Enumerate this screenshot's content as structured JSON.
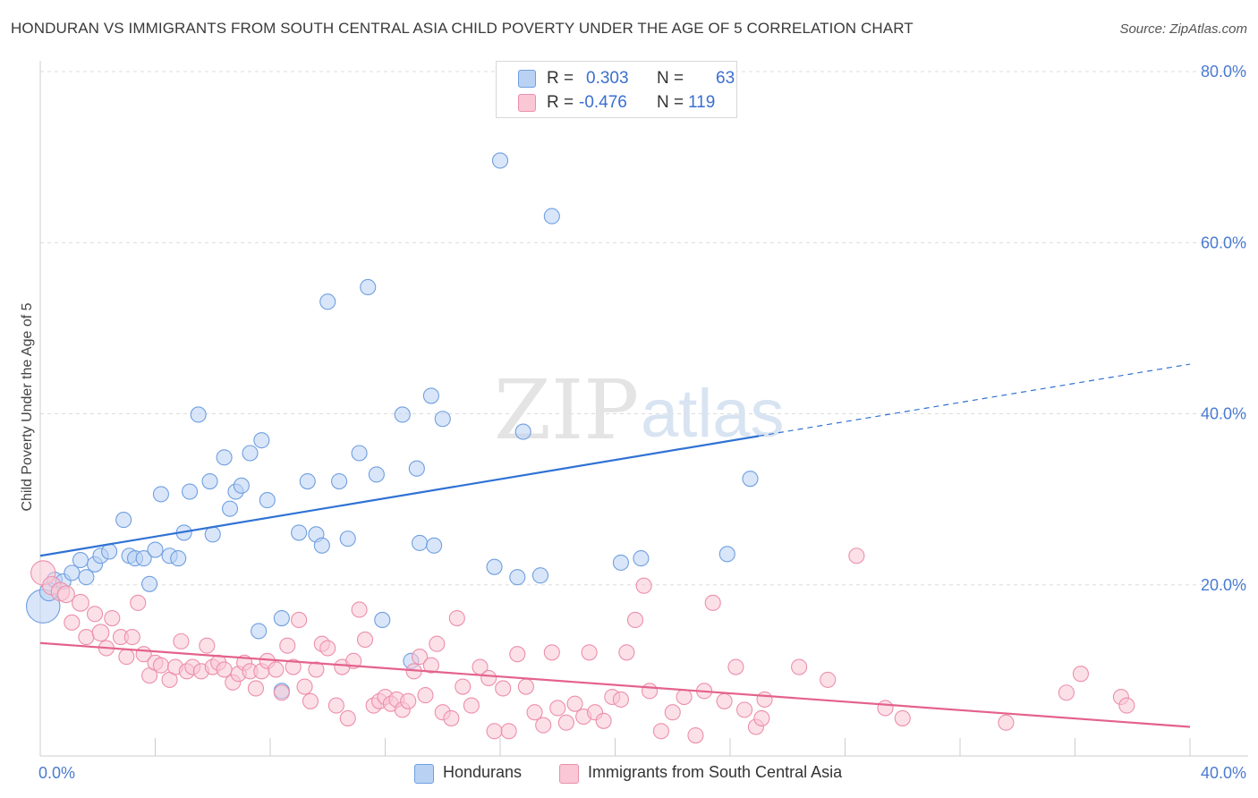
{
  "title": "HONDURAN VS IMMIGRANTS FROM SOUTH CENTRAL ASIA CHILD POVERTY UNDER THE AGE OF 5 CORRELATION CHART",
  "source": "Source: ZipAtlas.com",
  "watermark": {
    "zip": "ZIP",
    "atlas": "atlas"
  },
  "legend_box": [
    {
      "r_label": "R =",
      "r_value": "0.303",
      "n_label": "N =",
      "n_value": "63",
      "color": "#aecbf2"
    },
    {
      "r_label": "R =",
      "r_value": "-0.476",
      "n_label": "N =",
      "n_value": "119",
      "color": "#f7bfd0"
    }
  ],
  "bottom_legend": [
    {
      "label": "Hondurans",
      "color": "#aecbf2"
    },
    {
      "label": "Immigrants from South Central Asia",
      "color": "#f7bfd0"
    }
  ],
  "chart_data": {
    "type": "scatter",
    "title": "HONDURAN VS IMMIGRANTS FROM SOUTH CENTRAL ASIA CHILD POVERTY UNDER THE AGE OF 5 CORRELATION CHART",
    "xlabel": "",
    "ylabel": "Child Poverty Under the Age of 5",
    "xlim": [
      0,
      40
    ],
    "ylim": [
      0,
      80
    ],
    "x_tick_labels": [
      {
        "value": 0,
        "label": "0.0%"
      },
      {
        "value": 40,
        "label": "40.0%"
      }
    ],
    "y_tick_labels": [
      {
        "value": 20,
        "label": "20.0%"
      },
      {
        "value": 40,
        "label": "40.0%"
      },
      {
        "value": 60,
        "label": "60.0%"
      },
      {
        "value": 80,
        "label": "80.0%"
      }
    ],
    "grid": true,
    "legend_position": "top-center",
    "series": [
      {
        "name": "Hondurans",
        "color": "#6f9fe0",
        "fill": "#b9d2f4",
        "trend": {
          "x0": 0,
          "y0": 23.4,
          "x1": 25,
          "y1": 37.4,
          "dashed_to_x": 40,
          "dashed_to_y": 45.8,
          "color": "#2f72d4"
        },
        "points": [
          [
            0.1,
            17.5,
            2.2
          ],
          [
            0.3,
            19.2,
            1.2
          ],
          [
            0.5,
            20.6,
            1.0
          ],
          [
            0.8,
            20.4,
            1.0
          ],
          [
            1.1,
            21.4,
            1.0
          ],
          [
            1.4,
            22.9,
            1.0
          ],
          [
            1.6,
            20.9,
            1.0
          ],
          [
            1.9,
            22.4,
            1.0
          ],
          [
            2.1,
            23.4,
            1.0
          ],
          [
            2.4,
            23.9,
            1.0
          ],
          [
            2.9,
            27.6,
            1.0
          ],
          [
            3.1,
            23.4,
            1.0
          ],
          [
            3.3,
            23.1,
            1.0
          ],
          [
            3.6,
            23.1,
            1.0
          ],
          [
            3.8,
            20.1,
            1.0
          ],
          [
            4.0,
            24.1,
            1.0
          ],
          [
            4.2,
            30.6,
            1.0
          ],
          [
            4.5,
            23.4,
            1.0
          ],
          [
            4.8,
            23.1,
            1.0
          ],
          [
            5.0,
            26.1,
            1.0
          ],
          [
            5.2,
            30.9,
            1.0
          ],
          [
            5.5,
            39.9,
            1.0
          ],
          [
            5.9,
            32.1,
            1.0
          ],
          [
            6.0,
            25.9,
            1.0
          ],
          [
            6.4,
            34.9,
            1.0
          ],
          [
            6.6,
            28.9,
            1.0
          ],
          [
            6.8,
            30.9,
            1.0
          ],
          [
            7.0,
            31.6,
            1.0
          ],
          [
            7.3,
            35.4,
            1.0
          ],
          [
            7.7,
            36.9,
            1.0
          ],
          [
            7.9,
            29.9,
            1.0
          ],
          [
            8.4,
            16.1,
            1.0
          ],
          [
            8.4,
            7.6,
            1.0
          ],
          [
            7.6,
            14.6,
            1.0
          ],
          [
            9.0,
            26.1,
            1.0
          ],
          [
            9.3,
            32.1,
            1.0
          ],
          [
            9.6,
            25.9,
            1.0
          ],
          [
            9.8,
            24.6,
            1.0
          ],
          [
            10.0,
            53.1,
            1.0
          ],
          [
            10.4,
            32.1,
            1.0
          ],
          [
            10.7,
            25.4,
            1.0
          ],
          [
            11.1,
            35.4,
            1.0
          ],
          [
            11.4,
            54.8,
            1.0
          ],
          [
            11.7,
            32.9,
            1.0
          ],
          [
            11.9,
            15.9,
            1.0
          ],
          [
            12.6,
            39.9,
            1.0
          ],
          [
            12.9,
            11.1,
            1.0
          ],
          [
            13.1,
            33.6,
            1.0
          ],
          [
            13.2,
            24.9,
            1.0
          ],
          [
            13.7,
            24.6,
            1.0
          ],
          [
            13.6,
            42.1,
            1.0
          ],
          [
            14.0,
            39.4,
            1.0
          ],
          [
            15.8,
            22.1,
            1.0
          ],
          [
            16.0,
            69.6,
            1.0
          ],
          [
            16.6,
            20.9,
            1.0
          ],
          [
            16.8,
            37.9,
            1.0
          ],
          [
            17.4,
            21.1,
            1.0
          ],
          [
            17.8,
            63.1,
            1.0
          ],
          [
            20.2,
            22.6,
            1.0
          ],
          [
            20.9,
            23.1,
            1.0
          ],
          [
            23.9,
            23.6,
            1.0
          ],
          [
            24.7,
            32.4,
            1.0
          ]
        ]
      },
      {
        "name": "Immigrants from South Central Asia",
        "color": "#ec8fab",
        "fill": "#f9c7d5",
        "trend": {
          "x0": 0,
          "y0": 13.2,
          "x1": 40,
          "y1": 3.4,
          "color": "#e4628c"
        },
        "points": [
          [
            0.1,
            21.4,
            1.6
          ],
          [
            0.4,
            19.9,
            1.2
          ],
          [
            0.7,
            19.2,
            1.2
          ],
          [
            0.9,
            18.9,
            1.1
          ],
          [
            1.1,
            15.6,
            1.0
          ],
          [
            1.4,
            17.9,
            1.1
          ],
          [
            1.6,
            13.9,
            1.0
          ],
          [
            1.9,
            16.6,
            1.0
          ],
          [
            2.1,
            14.4,
            1.1
          ],
          [
            2.3,
            12.6,
            1.0
          ],
          [
            2.5,
            16.1,
            1.0
          ],
          [
            2.8,
            13.9,
            1.0
          ],
          [
            3.0,
            11.6,
            1.0
          ],
          [
            3.2,
            13.9,
            1.0
          ],
          [
            3.4,
            17.9,
            1.0
          ],
          [
            3.6,
            11.9,
            1.0
          ],
          [
            3.8,
            9.4,
            1.0
          ],
          [
            4.0,
            10.9,
            1.0
          ],
          [
            4.2,
            10.6,
            1.0
          ],
          [
            4.5,
            8.9,
            1.0
          ],
          [
            4.7,
            10.4,
            1.0
          ],
          [
            4.9,
            13.4,
            1.0
          ],
          [
            5.1,
            9.9,
            1.0
          ],
          [
            5.3,
            10.4,
            1.0
          ],
          [
            5.6,
            9.9,
            1.0
          ],
          [
            5.8,
            12.9,
            1.0
          ],
          [
            6.0,
            10.4,
            1.0
          ],
          [
            6.2,
            10.9,
            1.0
          ],
          [
            6.4,
            10.1,
            1.0
          ],
          [
            6.7,
            8.6,
            1.0
          ],
          [
            6.9,
            9.6,
            1.0
          ],
          [
            7.1,
            10.9,
            1.0
          ],
          [
            7.3,
            9.9,
            1.0
          ],
          [
            7.5,
            7.9,
            1.0
          ],
          [
            7.7,
            9.9,
            1.0
          ],
          [
            7.9,
            11.1,
            1.0
          ],
          [
            8.2,
            10.1,
            1.0
          ],
          [
            8.4,
            7.4,
            1.0
          ],
          [
            8.6,
            12.9,
            1.0
          ],
          [
            8.8,
            10.4,
            1.0
          ],
          [
            9.0,
            15.9,
            1.0
          ],
          [
            9.2,
            8.1,
            1.0
          ],
          [
            9.4,
            6.4,
            1.0
          ],
          [
            9.6,
            10.1,
            1.0
          ],
          [
            9.8,
            13.1,
            1.0
          ],
          [
            10.0,
            12.6,
            1.0
          ],
          [
            10.3,
            5.9,
            1.0
          ],
          [
            10.5,
            10.4,
            1.0
          ],
          [
            10.7,
            4.4,
            1.0
          ],
          [
            10.9,
            11.1,
            1.0
          ],
          [
            11.1,
            17.1,
            1.0
          ],
          [
            11.3,
            13.6,
            1.0
          ],
          [
            11.6,
            5.9,
            1.0
          ],
          [
            11.8,
            6.4,
            1.0
          ],
          [
            12.0,
            6.9,
            1.0
          ],
          [
            12.2,
            6.1,
            1.0
          ],
          [
            12.4,
            6.6,
            1.0
          ],
          [
            12.6,
            5.4,
            1.0
          ],
          [
            12.8,
            6.4,
            1.0
          ],
          [
            13.0,
            9.9,
            1.0
          ],
          [
            13.2,
            11.6,
            1.0
          ],
          [
            13.4,
            7.1,
            1.0
          ],
          [
            13.6,
            10.6,
            1.0
          ],
          [
            13.8,
            13.1,
            1.0
          ],
          [
            14.0,
            5.1,
            1.0
          ],
          [
            14.3,
            4.4,
            1.0
          ],
          [
            14.5,
            16.1,
            1.0
          ],
          [
            14.7,
            8.1,
            1.0
          ],
          [
            15.0,
            5.9,
            1.0
          ],
          [
            15.3,
            10.4,
            1.0
          ],
          [
            15.6,
            9.1,
            1.0
          ],
          [
            15.8,
            2.9,
            1.0
          ],
          [
            16.1,
            7.9,
            1.0
          ],
          [
            16.3,
            2.9,
            1.0
          ],
          [
            16.6,
            11.9,
            1.0
          ],
          [
            16.9,
            8.1,
            1.0
          ],
          [
            17.2,
            5.1,
            1.0
          ],
          [
            17.5,
            3.6,
            1.0
          ],
          [
            17.8,
            12.1,
            1.0
          ],
          [
            18.0,
            5.6,
            1.0
          ],
          [
            18.3,
            3.9,
            1.0
          ],
          [
            18.6,
            6.1,
            1.0
          ],
          [
            18.9,
            4.6,
            1.0
          ],
          [
            19.1,
            12.1,
            1.0
          ],
          [
            19.3,
            5.1,
            1.0
          ],
          [
            19.6,
            4.1,
            1.0
          ],
          [
            19.9,
            6.9,
            1.0
          ],
          [
            20.2,
            6.6,
            1.0
          ],
          [
            20.4,
            12.1,
            1.0
          ],
          [
            20.7,
            15.9,
            1.0
          ],
          [
            21.0,
            19.9,
            1.0
          ],
          [
            21.2,
            7.6,
            1.0
          ],
          [
            21.6,
            2.9,
            1.0
          ],
          [
            22.0,
            5.1,
            1.0
          ],
          [
            22.4,
            6.9,
            1.0
          ],
          [
            22.8,
            2.4,
            1.0
          ],
          [
            23.1,
            7.6,
            1.0
          ],
          [
            23.4,
            17.9,
            1.0
          ],
          [
            23.8,
            6.4,
            1.0
          ],
          [
            24.2,
            10.4,
            1.0
          ],
          [
            24.5,
            5.4,
            1.0
          ],
          [
            24.9,
            3.4,
            1.0
          ],
          [
            25.2,
            6.6,
            1.0
          ],
          [
            26.4,
            10.4,
            1.0
          ],
          [
            27.4,
            8.9,
            1.0
          ],
          [
            28.4,
            23.4,
            1.0
          ],
          [
            29.4,
            5.6,
            1.0
          ],
          [
            30.0,
            4.4,
            1.0
          ],
          [
            33.6,
            3.9,
            1.0
          ],
          [
            35.7,
            7.4,
            1.0
          ],
          [
            36.2,
            9.6,
            1.0
          ],
          [
            37.6,
            6.9,
            1.0
          ],
          [
            37.8,
            5.9,
            1.0
          ],
          [
            25.1,
            4.4,
            1.0
          ]
        ]
      }
    ]
  }
}
